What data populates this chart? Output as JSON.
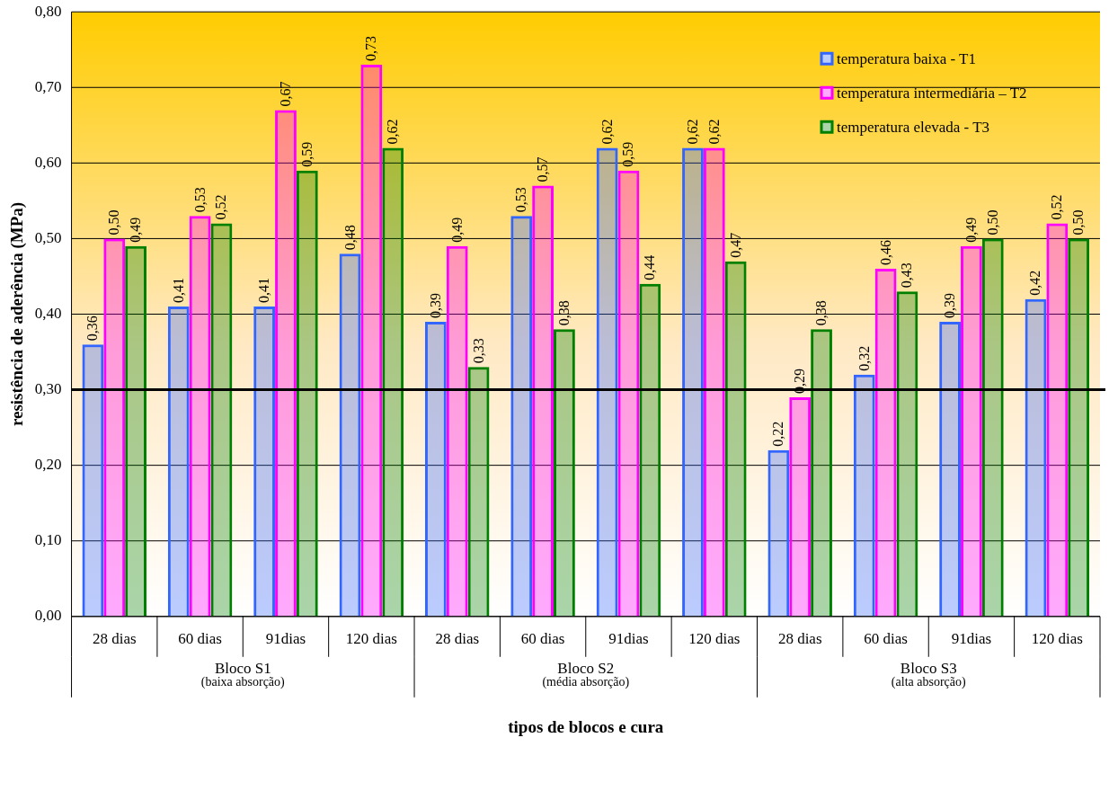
{
  "chart_data": {
    "type": "bar",
    "xlabel": "tipos de blocos e cura",
    "ylabel": "resistência de aderência (MPa)",
    "categories": [
      "28 dias",
      "60 dias",
      "91dias",
      "120 dias",
      "28 dias",
      "60 dias",
      "91dias",
      "120 dias",
      "28 dias",
      "60 dias",
      "91dias",
      "120 dias"
    ],
    "series": [
      {
        "name": "temperatura baixa - T1",
        "color": "#3366ff",
        "values": [
          0.36,
          0.41,
          0.41,
          0.48,
          0.39,
          0.53,
          0.62,
          0.62,
          0.22,
          0.32,
          0.39,
          0.42
        ],
        "value_labels": [
          "0,36",
          "0,41",
          "0,41",
          "0,48",
          "0,39",
          "0,53",
          "0,62",
          "0,62",
          "0,22",
          "0,32",
          "0,39",
          "0,42"
        ]
      },
      {
        "name": "temperatura intermediária – T2",
        "color": "#ff00ff",
        "values": [
          0.5,
          0.53,
          0.67,
          0.73,
          0.49,
          0.57,
          0.59,
          0.62,
          0.29,
          0.46,
          0.49,
          0.52
        ],
        "value_labels": [
          "0,50",
          "0,53",
          "0,67",
          "0,73",
          "0,49",
          "0,57",
          "0,59",
          "0,62",
          "0,29",
          "0,46",
          "0,49",
          "0,52"
        ]
      },
      {
        "name": "temperatura elevada - T3",
        "color": "#008000",
        "values": [
          0.49,
          0.52,
          0.59,
          0.62,
          0.33,
          0.38,
          0.44,
          0.47,
          0.38,
          0.43,
          0.5,
          0.5
        ],
        "value_labels": [
          "0,49",
          "0,52",
          "0,59",
          "0,62",
          "0,33",
          "0,38",
          "0,44",
          "0,47",
          "0,38",
          "0,43",
          "0,50",
          "0,50"
        ]
      }
    ],
    "ylim": [
      0,
      0.8
    ],
    "yticks": [
      {
        "value": 0,
        "label": "0,00"
      },
      {
        "value": 0.1,
        "label": "0,10"
      },
      {
        "value": 0.2,
        "label": "0,20"
      },
      {
        "value": 0.3,
        "label": "0,30"
      },
      {
        "value": 0.4,
        "label": "0,40"
      },
      {
        "value": 0.5,
        "label": "0,50"
      },
      {
        "value": 0.6,
        "label": "0,60"
      },
      {
        "value": 0.7,
        "label": "0,70"
      },
      {
        "value": 0.8,
        "label": "0,80"
      }
    ],
    "ref_lines": [
      {
        "axis": "y",
        "value": 0.3,
        "color": "#000000"
      }
    ],
    "annotations": [
      "Bloco S1 (baixa absorção)",
      "Bloco S2 (média absorção)",
      "Bloco S3 (alta absorção)"
    ],
    "grid": "y",
    "legend": "top right"
  }
}
